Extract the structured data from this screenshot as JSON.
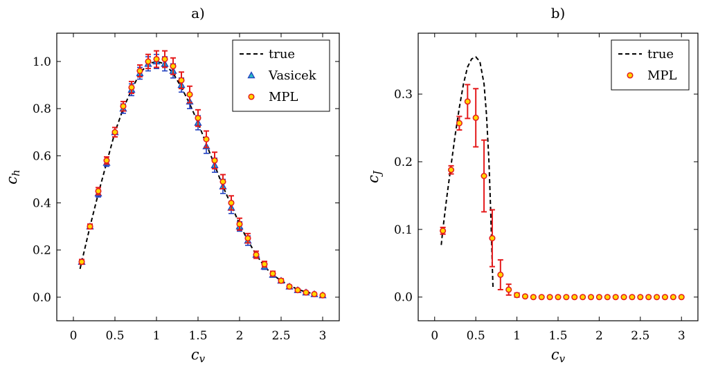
{
  "chart_data": [
    {
      "panel": "a)",
      "type": "scatter",
      "xlabel_main": "c",
      "xlabel_sub": "v",
      "ylabel_main": "c",
      "ylabel_sub": "h",
      "xlim": [
        -0.2,
        3.2
      ],
      "ylim": [
        -0.1,
        1.12
      ],
      "xticks": [
        0,
        0.5,
        1,
        1.5,
        2,
        2.5,
        3
      ],
      "xtick_labels": [
        "0",
        "0.5",
        "1",
        "1.5",
        "2",
        "2.5",
        "3"
      ],
      "yticks": [
        0,
        0.2,
        0.4,
        0.6,
        0.8,
        1.0
      ],
      "ytick_labels": [
        "0.0",
        "0.2",
        "0.4",
        "0.6",
        "0.8",
        "1.0"
      ],
      "legend": [
        "true",
        "Vasicek",
        "MPL"
      ],
      "legend_position": "top-right",
      "true_x": [
        0.08,
        0.1,
        0.2,
        0.3,
        0.4,
        0.5,
        0.6,
        0.7,
        0.8,
        0.9,
        1.0,
        1.1,
        1.2,
        1.3,
        1.4,
        1.5,
        1.6,
        1.7,
        1.8,
        1.9,
        2.0,
        2.1,
        2.2,
        2.3,
        2.4,
        2.5,
        2.6,
        2.7,
        2.8,
        2.9,
        3.0
      ],
      "true_y": [
        0.12,
        0.15,
        0.3,
        0.44,
        0.57,
        0.7,
        0.8,
        0.88,
        0.95,
        0.99,
        1.0,
        0.99,
        0.95,
        0.89,
        0.82,
        0.74,
        0.65,
        0.56,
        0.47,
        0.39,
        0.31,
        0.24,
        0.18,
        0.13,
        0.095,
        0.07,
        0.05,
        0.033,
        0.022,
        0.014,
        0.008
      ],
      "series": [
        {
          "name": "Vasicek",
          "x": [
            0.1,
            0.2,
            0.3,
            0.4,
            0.5,
            0.6,
            0.7,
            0.8,
            0.9,
            1.0,
            1.1,
            1.2,
            1.3,
            1.4,
            1.5,
            1.6,
            1.7,
            1.8,
            1.9,
            2.0,
            2.1,
            2.2,
            2.3,
            2.4,
            2.5,
            2.6,
            2.7,
            2.8,
            2.9,
            3.0
          ],
          "y": [
            0.15,
            0.3,
            0.44,
            0.57,
            0.7,
            0.8,
            0.88,
            0.95,
            0.99,
            1.0,
            0.99,
            0.96,
            0.9,
            0.83,
            0.74,
            0.64,
            0.56,
            0.47,
            0.38,
            0.3,
            0.24,
            0.18,
            0.13,
            0.095,
            0.07,
            0.045,
            0.03,
            0.02,
            0.013,
            0.008
          ],
          "err": [
            0.01,
            0.01,
            0.015,
            0.015,
            0.02,
            0.02,
            0.025,
            0.025,
            0.03,
            0.03,
            0.03,
            0.03,
            0.03,
            0.03,
            0.03,
            0.03,
            0.03,
            0.03,
            0.025,
            0.02,
            0.02,
            0.015,
            0.012,
            0.01,
            0.008,
            0.006,
            0.005,
            0.004,
            0.003,
            0.002
          ]
        },
        {
          "name": "MPL",
          "x": [
            0.1,
            0.2,
            0.3,
            0.4,
            0.5,
            0.6,
            0.7,
            0.8,
            0.9,
            1.0,
            1.1,
            1.2,
            1.3,
            1.4,
            1.5,
            1.6,
            1.7,
            1.8,
            1.9,
            2.0,
            2.1,
            2.2,
            2.3,
            2.4,
            2.5,
            2.6,
            2.7,
            2.8,
            2.9,
            3.0
          ],
          "y": [
            0.15,
            0.3,
            0.45,
            0.58,
            0.7,
            0.81,
            0.89,
            0.96,
            1.0,
            1.01,
            1.01,
            0.98,
            0.92,
            0.86,
            0.76,
            0.67,
            0.58,
            0.49,
            0.4,
            0.31,
            0.25,
            0.18,
            0.14,
            0.1,
            0.07,
            0.045,
            0.03,
            0.02,
            0.013,
            0.008
          ],
          "err": [
            0.01,
            0.01,
            0.015,
            0.015,
            0.02,
            0.02,
            0.025,
            0.025,
            0.03,
            0.035,
            0.035,
            0.035,
            0.035,
            0.035,
            0.035,
            0.035,
            0.035,
            0.03,
            0.03,
            0.025,
            0.02,
            0.015,
            0.012,
            0.01,
            0.008,
            0.006,
            0.005,
            0.004,
            0.003,
            0.002
          ]
        }
      ]
    },
    {
      "panel": "b)",
      "type": "scatter",
      "xlabel_main": "c",
      "xlabel_sub": "v",
      "ylabel_main": "c",
      "ylabel_sub": "J",
      "xlim": [
        -0.2,
        3.2
      ],
      "ylim": [
        -0.035,
        0.39
      ],
      "xticks": [
        0,
        0.5,
        1,
        1.5,
        2,
        2.5,
        3
      ],
      "xtick_labels": [
        "0",
        "0.5",
        "1",
        "1.5",
        "2",
        "2.5",
        "3"
      ],
      "yticks": [
        0,
        0.1,
        0.2,
        0.3
      ],
      "ytick_labels": [
        "0.0",
        "0.1",
        "0.2",
        "0.3"
      ],
      "legend": [
        "true",
        "MPL"
      ],
      "legend_position": "top-right",
      "true_x": [
        0.08,
        0.1,
        0.15,
        0.2,
        0.25,
        0.3,
        0.35,
        0.4,
        0.45,
        0.5,
        0.55,
        0.6,
        0.63,
        0.66,
        0.68,
        0.7,
        0.71
      ],
      "true_y": [
        0.077,
        0.1,
        0.15,
        0.195,
        0.24,
        0.28,
        0.315,
        0.34,
        0.352,
        0.355,
        0.348,
        0.315,
        0.27,
        0.2,
        0.13,
        0.05,
        0.012
      ],
      "series": [
        {
          "name": "MPL",
          "x": [
            0.1,
            0.2,
            0.3,
            0.4,
            0.5,
            0.6,
            0.7,
            0.8,
            0.9,
            1.0,
            1.1,
            1.2,
            1.3,
            1.4,
            1.5,
            1.6,
            1.7,
            1.8,
            1.9,
            2.0,
            2.1,
            2.2,
            2.3,
            2.4,
            2.5,
            2.6,
            2.7,
            2.8,
            2.9,
            3.0
          ],
          "y": [
            0.098,
            0.188,
            0.257,
            0.289,
            0.265,
            0.179,
            0.087,
            0.033,
            0.011,
            0.003,
            0.001,
            0.0,
            0.0,
            0.0,
            0.0,
            0.0,
            0.0,
            0.0,
            0.0,
            0.0,
            0.0,
            0.0,
            0.0,
            0.0,
            0.0,
            0.0,
            0.0,
            0.0,
            0.0,
            0.0
          ],
          "err": [
            0.005,
            0.006,
            0.01,
            0.025,
            0.043,
            0.053,
            0.042,
            0.022,
            0.008,
            0.003,
            0.0,
            0.0,
            0.0,
            0.0,
            0.0,
            0.0,
            0.0,
            0.0,
            0.0,
            0.0,
            0.0,
            0.0,
            0.0,
            0.0,
            0.0,
            0.0,
            0.0,
            0.0,
            0.0,
            0.0
          ]
        }
      ]
    }
  ]
}
